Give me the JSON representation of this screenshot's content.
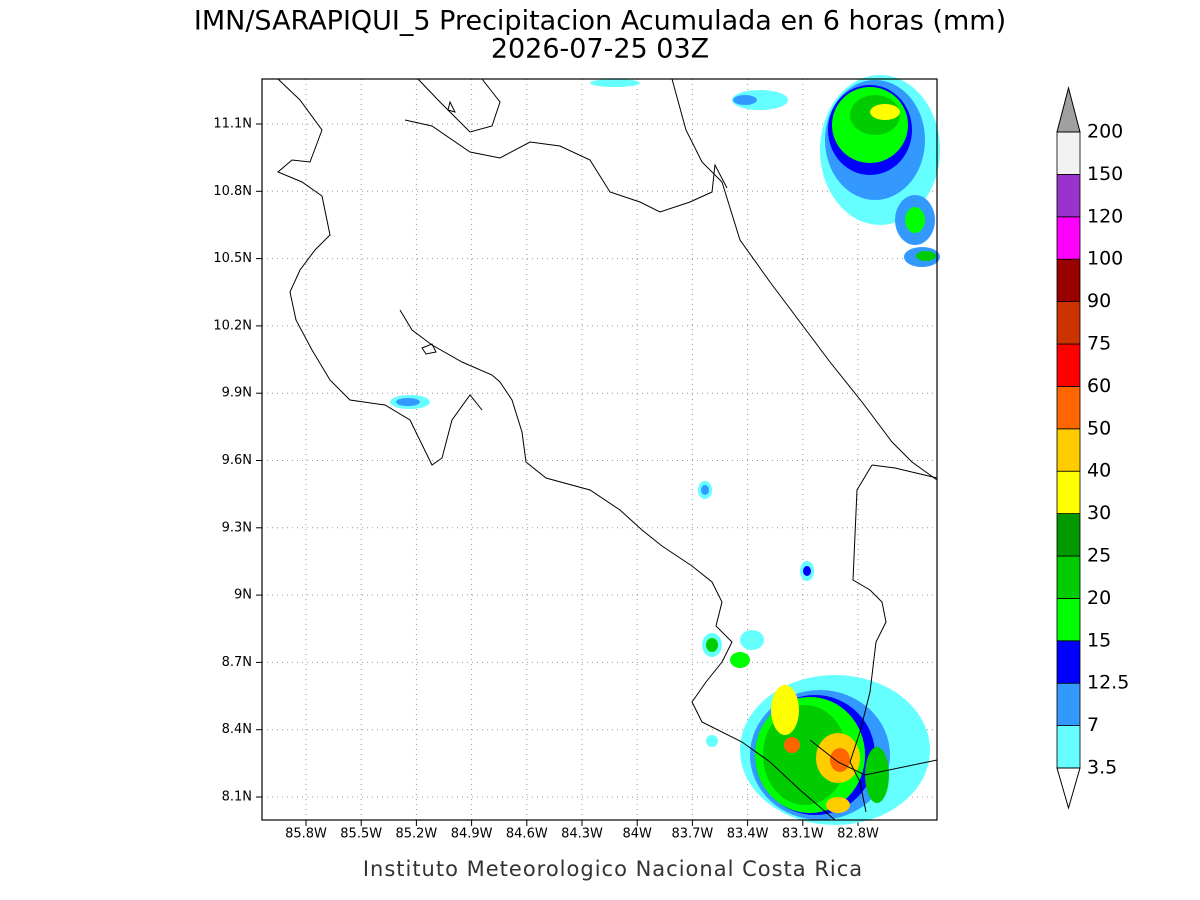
{
  "title": "IMN/SARAPIQUI_5 Precipitacion Acumulada en 6 horas (mm)",
  "subtitle": "2026-07-25 03Z",
  "footer": "Instituto Meteorologico Nacional Costa Rica",
  "lon_ticks": [
    "85.8W",
    "85.5W",
    "85.2W",
    "84.9W",
    "84.6W",
    "84.3W",
    "84W",
    "83.7W",
    "83.4W",
    "83.1W",
    "82.8W"
  ],
  "lat_ticks": [
    "11.1N",
    "10.8N",
    "10.5N",
    "10.2N",
    "9.9N",
    "9.6N",
    "9.3N",
    "9N",
    "8.7N",
    "8.4N",
    "8.1N"
  ],
  "colorbar": {
    "levels": [
      3.5,
      7,
      12.5,
      15,
      20,
      25,
      30,
      40,
      50,
      60,
      75,
      90,
      100,
      120,
      150,
      200
    ],
    "colors": [
      "#ffffff",
      "#66ffff",
      "#3399ff",
      "#0000ff",
      "#00ff00",
      "#00cc00",
      "#009900",
      "#ffff00",
      "#ffcc00",
      "#ff6600",
      "#ff0000",
      "#cc3300",
      "#990000",
      "#ff00ff",
      "#9933cc",
      "#f2f2f2",
      "#a0a0a0"
    ]
  }
}
